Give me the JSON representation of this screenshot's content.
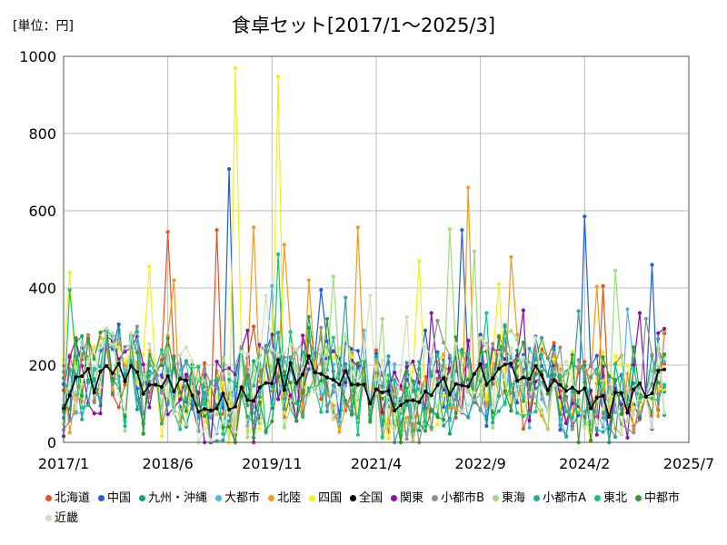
{
  "chart_data": {
    "type": "line",
    "title": "食卓セット[2017/1～2025/3]",
    "unit_label": "[単位：円]",
    "xlabel": "",
    "ylabel": "",
    "ylim": [
      0,
      1000
    ],
    "yticks": [
      0,
      200,
      400,
      600,
      800,
      1000
    ],
    "x_range": [
      "2017/1",
      "2025/7"
    ],
    "xticks": [
      "2017/1",
      "2018/6",
      "2019/11",
      "2021/4",
      "2022/9",
      "2024/2",
      "2025/7"
    ],
    "n_points": 99,
    "grid": true,
    "legend_position": "bottom",
    "series": [
      {
        "name": "北海道",
        "color": "#e8501c",
        "peaks": {
          "17": 545,
          "25": 550,
          "88": 405,
          "31": 300
        }
      },
      {
        "name": "中国",
        "color": "#1f5fd6",
        "peaks": {
          "27": 708,
          "85": 585,
          "65": 550,
          "96": 460,
          "42": 395,
          "59": 290
        }
      },
      {
        "name": "九州・沖縄",
        "color": "#13a37a",
        "peaks": {
          "40": 325,
          "65": 240
        }
      },
      {
        "name": "大都市",
        "color": "#4fb4e8",
        "peaks": {
          "34": 405,
          "92": 345,
          "49": 290
        }
      },
      {
        "name": "北陸",
        "color": "#f39a1c",
        "peaks": {
          "31": 557,
          "40": 420,
          "48": 557,
          "66": 660,
          "73": 480,
          "87": 403,
          "36": 512,
          "18": 420
        }
      },
      {
        "name": "四国",
        "color": "#f5ef1a",
        "peaks": {
          "28": 970,
          "35": 948,
          "1": 440,
          "58": 470,
          "14": 455,
          "71": 410
        }
      },
      {
        "name": "全国",
        "color": "#000000",
        "peaks": {}
      },
      {
        "name": "関東",
        "color": "#8a0fa8",
        "peaks": {
          "60": 335,
          "75": 342,
          "30": 290,
          "94": 335
        }
      },
      {
        "name": "小都市B",
        "color": "#8e8e8e",
        "peaks": {
          "95": 320,
          "12": 300,
          "61": 315
        }
      },
      {
        "name": "東海",
        "color": "#9ae07a",
        "peaks": {
          "44": 430,
          "63": 552,
          "67": 495,
          "90": 445,
          "52": 320
        }
      },
      {
        "name": "小都市A",
        "color": "#2aa5a0",
        "peaks": {
          "46": 375,
          "84": 340
        }
      },
      {
        "name": "東北",
        "color": "#16c47f",
        "peaks": {
          "1": 395,
          "35": 487,
          "69": 335
        }
      },
      {
        "name": "中都市",
        "color": "#2d9d2d",
        "peaks": {
          "43": 320,
          "64": 272
        }
      },
      {
        "name": "近畿",
        "color": "#cfe0b8",
        "peaks": {
          "33": 380,
          "50": 380,
          "56": 325
        }
      }
    ]
  }
}
